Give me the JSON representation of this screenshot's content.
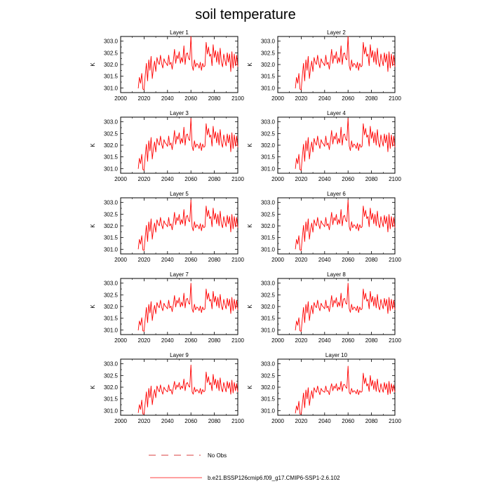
{
  "title": "soil temperature",
  "colors": {
    "model": "#ff0000",
    "obs": "#cc0000",
    "axis": "#000000"
  },
  "legend": {
    "obs_label": "No Obs",
    "model_label": "b.e21.BSSP126cmip6.f09_g17.CMIP6-SSP1-2.6.102"
  },
  "chart_data": {
    "type": "line",
    "ylabel": "K",
    "xlim": [
      2000,
      2100
    ],
    "ylim": [
      300.8,
      303.2
    ],
    "xticks": [
      2000,
      2020,
      2040,
      2060,
      2080,
      2100
    ],
    "yticks": [
      301.0,
      301.5,
      302.0,
      302.5,
      303.0
    ],
    "ytick_labels": [
      "301.0",
      "301.5",
      "302.0",
      "302.5",
      "303.0"
    ],
    "years": [
      2015,
      2016,
      2017,
      2018,
      2019,
      2020,
      2021,
      2022,
      2023,
      2024,
      2025,
      2026,
      2027,
      2028,
      2029,
      2030,
      2031,
      2032,
      2033,
      2034,
      2035,
      2036,
      2037,
      2038,
      2039,
      2040,
      2041,
      2042,
      2043,
      2044,
      2045,
      2046,
      2047,
      2048,
      2049,
      2050,
      2051,
      2052,
      2053,
      2054,
      2055,
      2056,
      2057,
      2058,
      2059,
      2060,
      2061,
      2062,
      2063,
      2064,
      2065,
      2066,
      2067,
      2068,
      2069,
      2070,
      2071,
      2072,
      2073,
      2074,
      2075,
      2076,
      2077,
      2078,
      2079,
      2080,
      2081,
      2082,
      2083,
      2084,
      2085,
      2086,
      2087,
      2088,
      2089,
      2090,
      2091,
      2092,
      2093,
      2094,
      2095,
      2096,
      2097,
      2098,
      2099,
      2100
    ],
    "panels": [
      {
        "title": "Layer 1",
        "values": [
          300.98,
          301.45,
          301.2,
          301.62,
          300.95,
          300.92,
          301.55,
          302.05,
          301.3,
          302.2,
          301.75,
          302.35,
          301.4,
          301.85,
          302.15,
          301.7,
          302.3,
          302.1,
          302.0,
          302.4,
          302.05,
          301.85,
          302.25,
          302.1,
          302.05,
          301.95,
          302.4,
          302.0,
          302.1,
          301.8,
          302.2,
          302.65,
          302.05,
          302.4,
          302.25,
          302.55,
          302.05,
          302.3,
          302.1,
          302.8,
          302.0,
          302.45,
          302.5,
          302.25,
          302.2,
          303.2,
          301.95,
          301.75,
          302.2,
          301.9,
          302.05,
          302.0,
          301.85,
          302.1,
          301.75,
          302.05,
          301.9,
          301.95,
          302.95,
          302.45,
          302.75,
          302.35,
          302.45,
          301.95,
          302.85,
          302.3,
          302.6,
          302.1,
          302.55,
          302.0,
          302.7,
          302.1,
          301.9,
          302.45,
          302.2,
          301.95,
          302.5,
          302.1,
          302.45,
          301.7,
          302.55,
          301.85,
          302.45,
          301.95,
          302.4,
          301.9
        ]
      },
      {
        "title": "Layer 2",
        "values": [
          300.98,
          301.45,
          301.2,
          301.62,
          300.95,
          300.92,
          301.55,
          302.05,
          301.3,
          302.2,
          301.75,
          302.35,
          301.4,
          301.85,
          302.15,
          301.7,
          302.3,
          302.1,
          302.0,
          302.4,
          302.05,
          301.85,
          302.25,
          302.1,
          302.05,
          301.95,
          302.4,
          302.0,
          302.1,
          301.8,
          302.2,
          302.65,
          302.05,
          302.4,
          302.25,
          302.55,
          302.05,
          302.3,
          302.1,
          302.8,
          302.0,
          302.45,
          302.5,
          302.25,
          302.2,
          303.2,
          301.95,
          301.75,
          302.2,
          301.9,
          302.05,
          302.0,
          301.85,
          302.1,
          301.75,
          302.05,
          301.9,
          301.95,
          302.95,
          302.45,
          302.75,
          302.35,
          302.45,
          301.95,
          302.85,
          302.3,
          302.6,
          302.1,
          302.55,
          302.0,
          302.7,
          302.1,
          301.9,
          302.45,
          302.2,
          301.95,
          302.5,
          302.1,
          302.45,
          301.7,
          302.55,
          301.85,
          302.45,
          301.95,
          302.4,
          301.9
        ]
      },
      {
        "title": "Layer 3",
        "values": [
          300.99,
          301.44,
          301.21,
          301.61,
          300.96,
          300.93,
          301.55,
          302.04,
          301.31,
          302.19,
          301.75,
          302.33,
          301.41,
          301.85,
          302.14,
          301.71,
          302.29,
          302.1,
          302.0,
          302.39,
          302.05,
          301.86,
          302.24,
          302.1,
          302.05,
          301.95,
          302.39,
          302.0,
          302.1,
          301.81,
          302.2,
          302.63,
          302.05,
          302.39,
          302.25,
          302.53,
          302.05,
          302.29,
          302.1,
          302.77,
          302.0,
          302.44,
          302.48,
          302.25,
          302.2,
          303.15,
          301.96,
          301.77,
          302.19,
          301.91,
          302.05,
          302.0,
          301.86,
          302.1,
          301.77,
          302.05,
          301.91,
          301.96,
          302.92,
          302.44,
          302.72,
          302.34,
          302.44,
          301.96,
          302.81,
          302.29,
          302.58,
          302.1,
          302.53,
          302.0,
          302.67,
          302.1,
          301.91,
          302.44,
          302.19,
          301.96,
          302.48,
          302.1,
          302.44,
          301.72,
          302.53,
          301.86,
          302.44,
          301.96,
          302.39,
          301.91
        ]
      },
      {
        "title": "Layer 4",
        "values": [
          300.99,
          301.44,
          301.21,
          301.61,
          300.96,
          300.93,
          301.55,
          302.04,
          301.31,
          302.19,
          301.75,
          302.33,
          301.41,
          301.85,
          302.14,
          301.71,
          302.29,
          302.1,
          302.0,
          302.39,
          302.05,
          301.86,
          302.24,
          302.1,
          302.05,
          301.95,
          302.39,
          302.0,
          302.1,
          301.81,
          302.2,
          302.63,
          302.05,
          302.39,
          302.25,
          302.53,
          302.05,
          302.29,
          302.1,
          302.77,
          302.0,
          302.44,
          302.48,
          302.25,
          302.2,
          303.15,
          301.96,
          301.77,
          302.19,
          301.91,
          302.05,
          302.0,
          301.86,
          302.1,
          301.77,
          302.05,
          301.91,
          301.96,
          302.92,
          302.44,
          302.72,
          302.34,
          302.44,
          301.96,
          302.81,
          302.29,
          302.58,
          302.1,
          302.53,
          302.0,
          302.67,
          302.1,
          301.91,
          302.44,
          302.19,
          301.96,
          302.48,
          302.1,
          302.44,
          301.72,
          302.53,
          301.86,
          302.44,
          301.96,
          302.39,
          301.91
        ]
      },
      {
        "title": "Layer 5",
        "values": [
          301.0,
          301.42,
          301.22,
          301.58,
          300.97,
          300.95,
          301.54,
          302.02,
          301.33,
          302.17,
          301.76,
          302.3,
          301.43,
          301.86,
          302.12,
          301.73,
          302.26,
          302.09,
          302.0,
          302.36,
          302.05,
          301.87,
          302.22,
          302.09,
          302.05,
          301.96,
          302.36,
          302.0,
          302.09,
          301.83,
          302.18,
          302.58,
          302.05,
          302.36,
          302.22,
          302.49,
          302.05,
          302.27,
          302.09,
          302.7,
          302.0,
          302.4,
          302.45,
          302.22,
          302.18,
          303.1,
          301.96,
          301.79,
          302.18,
          301.92,
          302.05,
          302.0,
          301.87,
          302.09,
          301.79,
          302.05,
          301.92,
          301.96,
          302.85,
          302.4,
          302.67,
          302.31,
          302.4,
          301.96,
          302.76,
          302.27,
          302.54,
          302.09,
          302.49,
          302.0,
          302.63,
          302.09,
          301.92,
          302.4,
          302.18,
          301.96,
          302.45,
          302.09,
          302.4,
          301.74,
          302.49,
          301.87,
          302.4,
          301.96,
          302.36,
          301.92
        ]
      },
      {
        "title": "Layer 6",
        "values": [
          301.0,
          301.42,
          301.22,
          301.58,
          300.97,
          300.95,
          301.54,
          302.02,
          301.33,
          302.17,
          301.76,
          302.3,
          301.43,
          301.86,
          302.12,
          301.73,
          302.26,
          302.09,
          302.0,
          302.36,
          302.05,
          301.87,
          302.22,
          302.09,
          302.05,
          301.96,
          302.36,
          302.0,
          302.09,
          301.83,
          302.18,
          302.58,
          302.05,
          302.36,
          302.22,
          302.49,
          302.05,
          302.27,
          302.09,
          302.7,
          302.0,
          302.4,
          302.45,
          302.22,
          302.18,
          303.1,
          301.96,
          301.79,
          302.18,
          301.92,
          302.05,
          302.0,
          301.87,
          302.09,
          301.79,
          302.05,
          301.92,
          301.96,
          302.85,
          302.4,
          302.67,
          302.31,
          302.4,
          301.96,
          302.76,
          302.27,
          302.54,
          302.09,
          302.49,
          302.0,
          302.63,
          302.09,
          301.92,
          302.4,
          302.18,
          301.96,
          302.45,
          302.09,
          302.4,
          301.74,
          302.49,
          301.87,
          302.4,
          301.96,
          302.36,
          301.92
        ]
      },
      {
        "title": "Layer 7",
        "values": [
          300.98,
          301.38,
          301.2,
          301.52,
          300.96,
          300.94,
          301.5,
          301.96,
          301.31,
          302.09,
          301.72,
          302.21,
          301.4,
          301.81,
          302.05,
          301.69,
          302.17,
          302.02,
          301.95,
          302.27,
          301.98,
          301.82,
          302.14,
          302.02,
          301.98,
          301.9,
          302.27,
          301.94,
          302.02,
          301.78,
          302.1,
          302.47,
          301.98,
          302.27,
          302.14,
          302.38,
          301.98,
          302.19,
          302.02,
          302.57,
          301.94,
          302.31,
          302.35,
          302.14,
          302.1,
          303.0,
          301.9,
          301.75,
          302.1,
          301.86,
          301.98,
          301.94,
          301.82,
          302.02,
          301.74,
          301.98,
          301.86,
          301.9,
          302.75,
          302.31,
          302.57,
          302.23,
          302.31,
          301.9,
          302.65,
          302.19,
          302.44,
          302.02,
          302.39,
          301.94,
          302.52,
          302.02,
          301.86,
          302.31,
          302.1,
          301.9,
          302.35,
          302.02,
          302.31,
          301.7,
          302.39,
          301.82,
          302.31,
          301.9,
          302.27,
          301.86
        ]
      },
      {
        "title": "Layer 8",
        "values": [
          300.98,
          301.38,
          301.2,
          301.52,
          300.96,
          300.94,
          301.5,
          301.96,
          301.31,
          302.09,
          301.72,
          302.21,
          301.4,
          301.81,
          302.05,
          301.69,
          302.17,
          302.02,
          301.95,
          302.27,
          301.98,
          301.82,
          302.14,
          302.02,
          301.98,
          301.9,
          302.27,
          301.94,
          302.02,
          301.78,
          302.1,
          302.47,
          301.98,
          302.27,
          302.14,
          302.38,
          301.98,
          302.19,
          302.02,
          302.57,
          301.94,
          302.31,
          302.35,
          302.14,
          302.1,
          303.0,
          301.9,
          301.75,
          302.1,
          301.86,
          301.98,
          301.94,
          301.82,
          302.02,
          301.74,
          301.98,
          301.86,
          301.9,
          302.75,
          302.31,
          302.57,
          302.23,
          302.31,
          301.9,
          302.65,
          302.19,
          302.44,
          302.02,
          302.39,
          301.94,
          302.52,
          302.02,
          301.86,
          302.31,
          302.1,
          301.9,
          302.35,
          302.02,
          302.31,
          301.7,
          302.39,
          301.82,
          302.31,
          301.9,
          302.27,
          301.86
        ]
      },
      {
        "title": "Layer 9",
        "values": [
          300.9,
          301.25,
          301.05,
          301.45,
          300.85,
          300.85,
          301.35,
          301.8,
          301.15,
          301.95,
          301.55,
          302.05,
          301.25,
          301.65,
          301.9,
          301.55,
          302.05,
          301.9,
          301.8,
          302.1,
          301.85,
          301.7,
          302.0,
          301.9,
          301.85,
          301.8,
          302.1,
          301.85,
          301.9,
          301.7,
          302.0,
          302.25,
          301.9,
          302.1,
          302.0,
          302.2,
          301.9,
          302.05,
          301.95,
          302.35,
          301.85,
          302.15,
          302.2,
          302.05,
          302.0,
          302.95,
          301.8,
          301.7,
          302.0,
          301.8,
          301.9,
          301.85,
          301.75,
          301.95,
          301.7,
          301.9,
          301.8,
          301.85,
          302.65,
          302.2,
          302.45,
          302.1,
          302.2,
          301.85,
          302.55,
          302.1,
          302.35,
          301.95,
          302.3,
          301.85,
          302.4,
          301.95,
          301.8,
          302.2,
          302.0,
          301.8,
          302.25,
          301.95,
          302.2,
          301.7,
          302.3,
          301.75,
          302.2,
          301.85,
          302.15,
          301.8
        ]
      },
      {
        "title": "Layer 10",
        "values": [
          300.88,
          301.2,
          301.02,
          301.4,
          300.85,
          300.85,
          301.3,
          301.75,
          301.12,
          301.88,
          301.5,
          301.98,
          301.22,
          301.6,
          301.85,
          301.52,
          301.98,
          301.85,
          301.78,
          302.05,
          301.82,
          301.68,
          301.95,
          301.85,
          301.82,
          301.78,
          302.05,
          301.82,
          301.85,
          301.68,
          301.95,
          302.15,
          301.85,
          302.05,
          301.95,
          302.15,
          301.85,
          302.0,
          301.9,
          302.25,
          301.82,
          302.1,
          302.12,
          302.0,
          301.95,
          302.9,
          301.78,
          301.7,
          301.95,
          301.78,
          301.85,
          301.82,
          301.72,
          301.9,
          301.68,
          301.85,
          301.78,
          301.82,
          302.6,
          302.15,
          302.4,
          302.05,
          302.15,
          301.82,
          302.5,
          302.05,
          302.3,
          301.9,
          302.25,
          301.82,
          302.35,
          301.9,
          301.78,
          302.15,
          301.95,
          301.78,
          302.2,
          301.9,
          302.15,
          301.68,
          302.25,
          301.72,
          302.15,
          301.82,
          302.1,
          301.78
        ]
      }
    ]
  }
}
